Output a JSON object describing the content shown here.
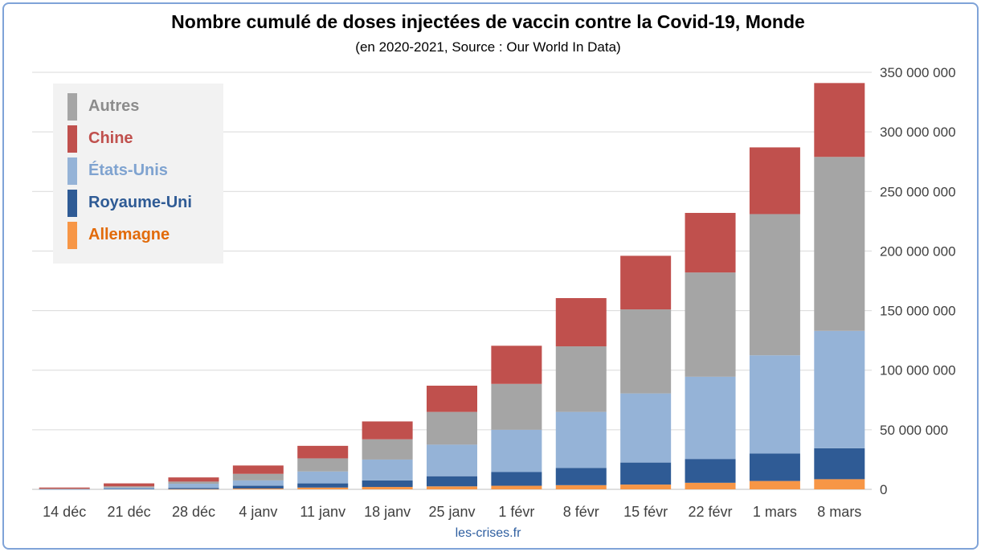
{
  "chart_data": {
    "type": "bar",
    "stacked": true,
    "title": "Nombre cumulé de doses injectées de vaccin contre la Covid-19, Monde",
    "subtitle": "(en 2020-2021, Source : Our World In Data)",
    "categories": [
      "14 déc",
      "21 déc",
      "28 déc",
      "4 janv",
      "11 janv",
      "18 janv",
      "25 janv",
      "1 févr",
      "8 févr",
      "15 févr",
      "22 févr",
      "1 mars",
      "8 mars"
    ],
    "series": [
      {
        "name": "Allemagne",
        "color": "#f79646",
        "values": [
          0,
          0,
          200000,
          700000,
          1500000,
          2000000,
          2500000,
          3000000,
          3500000,
          4000000,
          5500000,
          7000000,
          8500000
        ]
      },
      {
        "name": "Royaume-Uni",
        "color": "#2f5b95",
        "values": [
          100000,
          500000,
          1000000,
          2300000,
          3500000,
          5500000,
          8500000,
          11500000,
          14500000,
          18500000,
          20000000,
          23000000,
          26000000
        ]
      },
      {
        "name": "États-Unis",
        "color": "#95b3d7",
        "values": [
          100000,
          1000000,
          3500000,
          4500000,
          10000000,
          17500000,
          26500000,
          35500000,
          47000000,
          58000000,
          69000000,
          82500000,
          98500000
        ]
      },
      {
        "name": "Autres",
        "color": "#a5a5a5",
        "values": [
          300000,
          1000000,
          1800000,
          5500000,
          11000000,
          17000000,
          27500000,
          38500000,
          55000000,
          70500000,
          87500000,
          118500000,
          146000000
        ]
      },
      {
        "name": "Chine",
        "color": "#c0504d",
        "values": [
          1000000,
          2500000,
          3500000,
          7000000,
          10500000,
          15000000,
          22000000,
          32000000,
          40500000,
          45000000,
          50000000,
          56000000,
          62000000
        ]
      }
    ],
    "ylim": [
      0,
      350000000
    ],
    "yticks": [
      0,
      50000000,
      100000000,
      150000000,
      200000000,
      250000000,
      300000000,
      350000000
    ],
    "ytick_labels": [
      "0",
      "50 000 000",
      "100 000 000",
      "150 000 000",
      "200 000 000",
      "250 000 000",
      "300 000 000",
      "350 000 000"
    ],
    "y_axis_side": "right",
    "grid": true,
    "legend_position": "top-left",
    "legend_order": [
      "Autres",
      "Chine",
      "États-Unis",
      "Royaume-Uni",
      "Allemagne"
    ],
    "legend_colors": {
      "Autres": "#a5a5a5",
      "Chine": "#c0504d",
      "États-Unis": "#95b3d7",
      "Royaume-Uni": "#2f5b95",
      "Allemagne": "#f79646"
    },
    "legend_text_colors": {
      "Autres": "#8c8c8c",
      "Chine": "#c0504d",
      "États-Unis": "#7fa3d0",
      "Royaume-Uni": "#2f5b95",
      "Allemagne": "#e26b0a"
    }
  },
  "source": "les-crises.fr"
}
